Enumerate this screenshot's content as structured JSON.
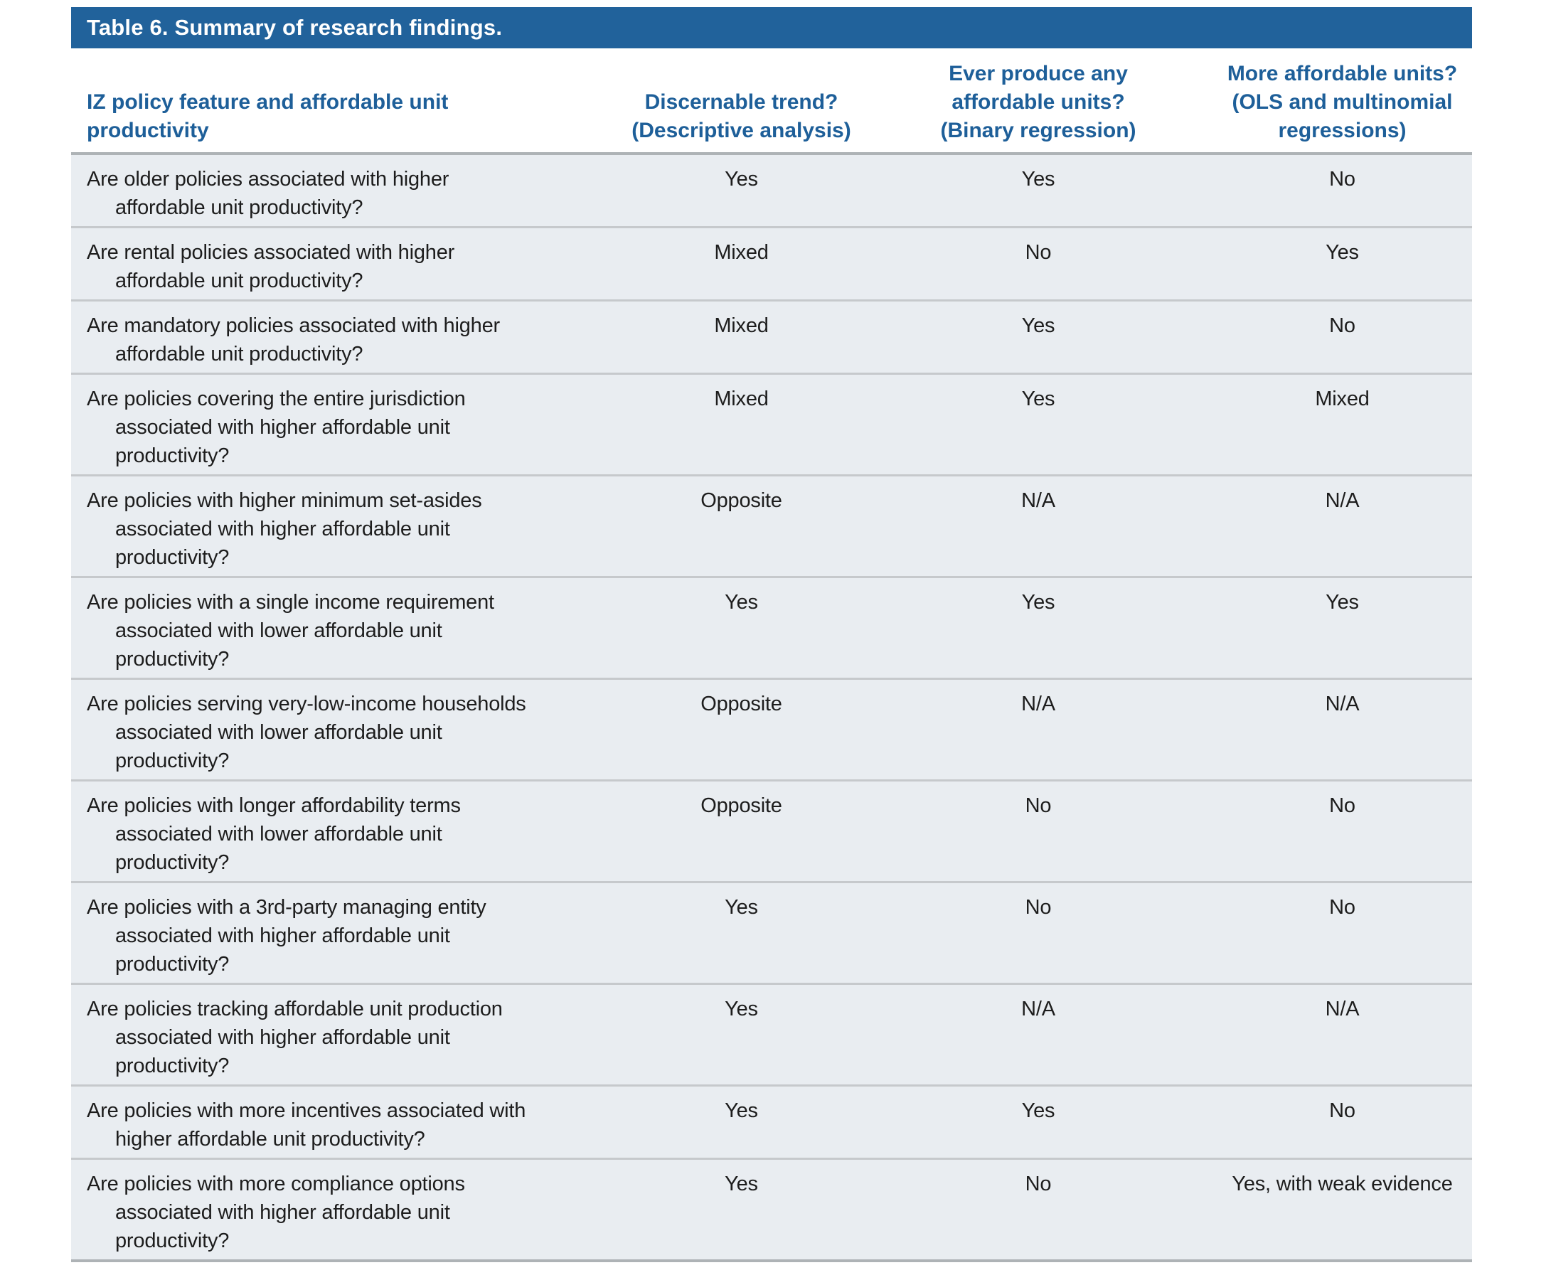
{
  "title": "Table 6. Summary of research findings.",
  "headers": [
    {
      "lines": [
        "IZ policy feature and affordable unit",
        "productivity"
      ]
    },
    {
      "lines": [
        "Discernable trend?",
        "(Descriptive analysis)"
      ]
    },
    {
      "lines": [
        "Ever produce any",
        "affordable units?",
        "(Binary regression)"
      ]
    },
    {
      "lines": [
        "More affordable units?",
        "(OLS and multinomial",
        "regressions)"
      ]
    }
  ],
  "rows": [
    {
      "question_lines": [
        "Are older policies associated with higher",
        "affordable unit productivity?"
      ],
      "trend": "Yes",
      "ever_produce": "Yes",
      "more_units": "No"
    },
    {
      "question_lines": [
        "Are rental policies associated with higher",
        "affordable unit productivity?"
      ],
      "trend": "Mixed",
      "ever_produce": "No",
      "more_units": "Yes"
    },
    {
      "question_lines": [
        "Are mandatory policies associated with higher",
        "affordable unit productivity?"
      ],
      "trend": "Mixed",
      "ever_produce": "Yes",
      "more_units": "No"
    },
    {
      "question_lines": [
        "Are policies covering the entire jurisdiction",
        "associated with higher affordable unit",
        "productivity?"
      ],
      "trend": "Mixed",
      "ever_produce": "Yes",
      "more_units": "Mixed"
    },
    {
      "question_lines": [
        "Are policies with higher minimum set-asides",
        "associated with higher affordable unit",
        "productivity?"
      ],
      "trend": "Opposite",
      "ever_produce": "N/A",
      "more_units": "N/A"
    },
    {
      "question_lines": [
        "Are policies with a single income requirement",
        "associated with lower affordable unit",
        "productivity?"
      ],
      "trend": "Yes",
      "ever_produce": "Yes",
      "more_units": "Yes"
    },
    {
      "question_lines": [
        "Are policies serving very-low-income households",
        "associated with lower affordable unit",
        "productivity?"
      ],
      "trend": "Opposite",
      "ever_produce": "N/A",
      "more_units": "N/A"
    },
    {
      "question_lines": [
        "Are policies with longer affordability terms",
        "associated with lower affordable unit",
        "productivity?"
      ],
      "trend": "Opposite",
      "ever_produce": "No",
      "more_units": "No"
    },
    {
      "question_lines": [
        "Are policies with a 3rd-party managing entity",
        "associated with higher affordable unit",
        "productivity?"
      ],
      "trend": "Yes",
      "ever_produce": "No",
      "more_units": "No"
    },
    {
      "question_lines": [
        "Are policies tracking affordable unit production",
        "associated with higher affordable unit",
        "productivity?"
      ],
      "trend": "Yes",
      "ever_produce": "N/A",
      "more_units": "N/A"
    },
    {
      "question_lines": [
        "Are policies with more incentives associated with",
        "higher affordable unit productivity?"
      ],
      "trend": "Yes",
      "ever_produce": "Yes",
      "more_units": "No"
    },
    {
      "question_lines": [
        "Are policies with more compliance options",
        "associated with higher affordable unit",
        "productivity?"
      ],
      "trend": "Yes",
      "ever_produce": "No",
      "more_units": "Yes, with weak evidence"
    }
  ],
  "colors": {
    "title_bar": "#21629b",
    "header_text": "#1e5f99",
    "row_background": "#e9edf1",
    "row_separator": "#c6c9cc",
    "body_border": "#aeb3b6"
  }
}
